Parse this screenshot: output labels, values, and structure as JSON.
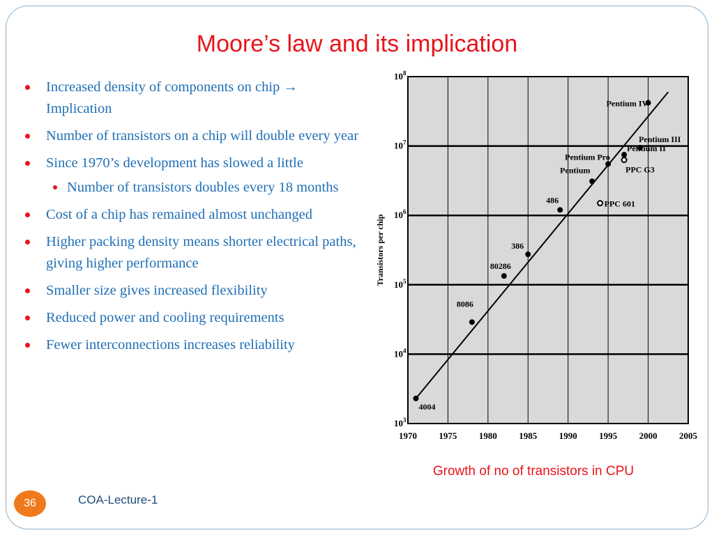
{
  "slide": {
    "title": "Moore’s law and its implication",
    "bullets": [
      {
        "text": "Increased density of components on chip",
        "arrow": "→",
        "tail": "Implication",
        "level": 1
      },
      {
        "text": "Number of transistors on a chip will double every year",
        "level": 1
      },
      {
        "text": "Since 1970’s development has slowed a little",
        "level": 1
      },
      {
        "text": "Number of transistors doubles every 18 months",
        "level": 2
      },
      {
        "text": "Cost of a chip has remained almost unchanged",
        "level": 1
      },
      {
        "text": "Higher packing density means shorter electrical paths, giving higher performance",
        "level": 1
      },
      {
        "text": "Smaller size gives increased flexibility",
        "level": 1
      },
      {
        "text": "Reduced power and cooling requirements",
        "level": 1
      },
      {
        "text": "Fewer interconnections increases reliability",
        "level": 1
      }
    ],
    "caption": "Growth of no of transistors in CPU",
    "slide_number": "36",
    "footer": "COA-Lecture-1",
    "colors": {
      "title": "#e8141b",
      "body_text": "#1f6fb5",
      "badge": "#f07a1b",
      "footer": "#1f4e79"
    }
  },
  "chart_data": {
    "type": "scatter",
    "ylabel": "Transistors per chip",
    "xlabel": "",
    "y_scale": "log",
    "xlim": [
      1970,
      2005
    ],
    "ylim": [
      1000,
      100000000
    ],
    "x_ticks": [
      "1970",
      "1975",
      "1980",
      "1985",
      "1990",
      "1995",
      "2000",
      "2005"
    ],
    "y_ticks": [
      {
        "base": "10",
        "exp": "3"
      },
      {
        "base": "10",
        "exp": "4"
      },
      {
        "base": "10",
        "exp": "5"
      },
      {
        "base": "10",
        "exp": "6"
      },
      {
        "base": "10",
        "exp": "7"
      },
      {
        "base": "10",
        "exp": "8"
      }
    ],
    "grid": true,
    "points": [
      {
        "label": "4004",
        "x": 1971,
        "y": 2300,
        "marker": "filled"
      },
      {
        "label": "8086",
        "x": 1978,
        "y": 29000,
        "marker": "filled"
      },
      {
        "label": "80286",
        "x": 1982,
        "y": 134000,
        "marker": "filled"
      },
      {
        "label": "386",
        "x": 1985,
        "y": 275000,
        "marker": "filled"
      },
      {
        "label": "486",
        "x": 1989,
        "y": 1200000,
        "marker": "filled"
      },
      {
        "label": "Pentium",
        "x": 1993,
        "y": 3100000,
        "marker": "filled"
      },
      {
        "label": "Pentium Pro",
        "x": 1995,
        "y": 5500000,
        "marker": "filled"
      },
      {
        "label": "PPC 601",
        "x": 1994,
        "y": 1500000,
        "marker": "open"
      },
      {
        "label": "Pentium II",
        "x": 1997,
        "y": 7500000,
        "marker": "filled"
      },
      {
        "label": "PPC G3",
        "x": 1997,
        "y": 6300000,
        "marker": "open"
      },
      {
        "label": "Pentium III",
        "x": 1999,
        "y": 9500000,
        "marker": "filled"
      },
      {
        "label": "Pentium IV",
        "x": 2000,
        "y": 42000000,
        "marker": "filled"
      }
    ],
    "trend_line": {
      "x": [
        1971,
        2002.5
      ],
      "y": [
        2300,
        60000000
      ]
    }
  }
}
